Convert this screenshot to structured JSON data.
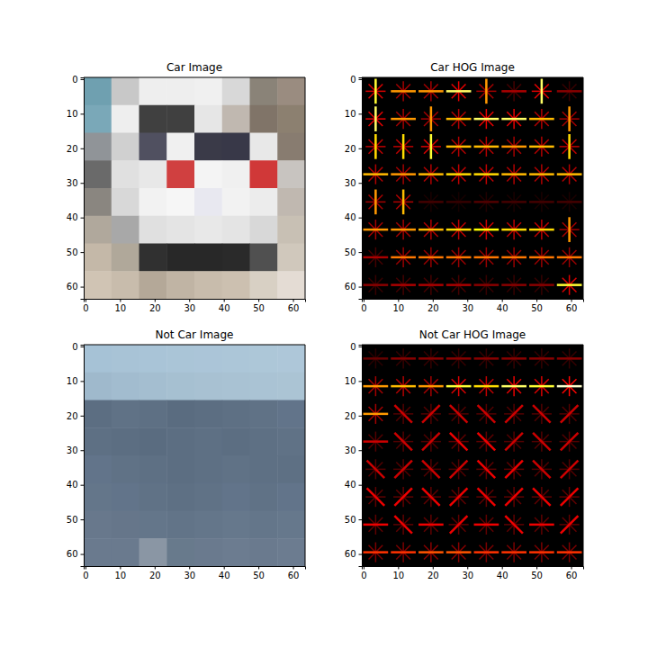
{
  "chart_data": [
    {
      "type": "image",
      "title": "Car Image",
      "xlim": [
        -0.5,
        63.5
      ],
      "ylim": [
        63.5,
        -0.5
      ],
      "xticks": [
        0,
        10,
        20,
        30,
        40,
        50,
        60
      ],
      "yticks": [
        0,
        10,
        20,
        30,
        40,
        50,
        60
      ],
      "pixels": [
        [
          "#6fa0b0",
          "#c8c8c8",
          "#eeeeee",
          "#eeeeee",
          "#f0f0f0",
          "#d8d8d8",
          "#8a8378",
          "#9a8c80"
        ],
        [
          "#7aa8b8",
          "#eeeeee",
          "#404040",
          "#404040",
          "#e6e6e6",
          "#c0b8b0",
          "#807468",
          "#8c8070"
        ],
        [
          "#909498",
          "#d0d0d0",
          "#505060",
          "#f0f0f0",
          "#3a3a48",
          "#383848",
          "#e8e8e8",
          "#887c70"
        ],
        [
          "#6a6a6a",
          "#e0e0e0",
          "#e8e8e8",
          "#d04040",
          "#f4f4f4",
          "#f0f0f0",
          "#d03838",
          "#c8c4c0"
        ],
        [
          "#8a8680",
          "#d8d8d8",
          "#f2f2f2",
          "#f6f6f6",
          "#e8e8f0",
          "#f2f2f2",
          "#ececec",
          "#c0b8b0"
        ],
        [
          "#b0a89c",
          "#a8a8a8",
          "#e0e0e0",
          "#e4e4e4",
          "#e8e8e8",
          "#e4e4e4",
          "#d8d8d8",
          "#c8c0b4"
        ],
        [
          "#c4b8a8",
          "#b0a89a",
          "#303030",
          "#282828",
          "#282828",
          "#2a2a2a",
          "#505050",
          "#d0c8bc"
        ],
        [
          "#d0c4b4",
          "#c8bcac",
          "#b4a898",
          "#c0b4a4",
          "#c8bcac",
          "#ccc0b0",
          "#d8d0c4",
          "#e4dcd4"
        ]
      ]
    },
    {
      "type": "hog",
      "title": "Car HOG Image",
      "xlim": [
        -0.5,
        63.5
      ],
      "ylim": [
        63.5,
        -0.5
      ],
      "xticks": [
        0,
        10,
        20,
        30,
        40,
        50,
        60
      ],
      "yticks": [
        0,
        10,
        20,
        30,
        40,
        50,
        60
      ],
      "magnitudes": [
        [
          0.8,
          0.6,
          0.6,
          0.85,
          0.6,
          0.25,
          0.85,
          0.2
        ],
        [
          0.85,
          0.6,
          0.6,
          0.65,
          0.85,
          0.85,
          0.65,
          0.6
        ],
        [
          0.7,
          0.7,
          0.8,
          0.65,
          0.65,
          0.6,
          0.65,
          0.7
        ],
        [
          0.65,
          0.6,
          0.65,
          0.7,
          0.7,
          0.65,
          0.65,
          0.65
        ],
        [
          0.6,
          0.65,
          0.1,
          0.08,
          0.12,
          0.1,
          0.1,
          0.1
        ],
        [
          0.6,
          0.6,
          0.65,
          0.7,
          0.75,
          0.7,
          0.7,
          0.6
        ],
        [
          0.25,
          0.55,
          0.55,
          0.55,
          0.55,
          0.55,
          0.55,
          0.55
        ],
        [
          0.2,
          0.25,
          0.25,
          0.25,
          0.2,
          0.2,
          0.2,
          0.8
        ]
      ],
      "angles": [
        [
          90,
          0,
          0,
          0,
          90,
          0,
          90,
          0
        ],
        [
          90,
          0,
          90,
          0,
          0,
          0,
          0,
          90
        ],
        [
          90,
          90,
          90,
          0,
          0,
          0,
          0,
          90
        ],
        [
          0,
          0,
          0,
          0,
          0,
          0,
          0,
          0
        ],
        [
          90,
          90,
          0,
          0,
          0,
          0,
          0,
          0
        ],
        [
          0,
          0,
          0,
          0,
          0,
          0,
          0,
          90
        ],
        [
          0,
          0,
          0,
          0,
          0,
          0,
          0,
          0
        ],
        [
          0,
          0,
          0,
          0,
          0,
          0,
          0,
          0
        ]
      ]
    },
    {
      "type": "image",
      "title": "Not Car Image",
      "xlim": [
        -0.5,
        63.5
      ],
      "ylim": [
        63.5,
        -0.5
      ],
      "xticks": [
        0,
        10,
        20,
        30,
        40,
        50,
        60
      ],
      "yticks": [
        0,
        10,
        20,
        30,
        40,
        50,
        60
      ],
      "pixels": [
        [
          "#a6c2d6",
          "#a8c3d6",
          "#a9c4d7",
          "#aac5d7",
          "#abc5d8",
          "#acc6d8",
          "#adc7d8",
          "#aec7d9"
        ],
        [
          "#9fb9cc",
          "#a2bccf",
          "#a4bed0",
          "#a6c0d1",
          "#a8c1d2",
          "#a9c2d3",
          "#aac3d4",
          "#abc4d4"
        ],
        [
          "#5c6e82",
          "#607286",
          "#5e7084",
          "#5a6c80",
          "#5c6e82",
          "#5e7084",
          "#607286",
          "#62748a"
        ],
        [
          "#5e7084",
          "#5c6e82",
          "#5a6c80",
          "#5c6e82",
          "#5e7084",
          "#5c6e82",
          "#5e7084",
          "#607286"
        ],
        [
          "#62748a",
          "#607286",
          "#5e7084",
          "#5c6e82",
          "#5e7084",
          "#607286",
          "#5e7084",
          "#5e7084"
        ],
        [
          "#64768a",
          "#62748a",
          "#607286",
          "#5e7084",
          "#607286",
          "#62748a",
          "#607286",
          "#62748a"
        ],
        [
          "#68788c",
          "#66768a",
          "#64768a",
          "#627488",
          "#64768a",
          "#66788c",
          "#64768a",
          "#66788c"
        ],
        [
          "#6a7a8e",
          "#6a7a8e",
          "#8a96a4",
          "#687a8c",
          "#6a7a8e",
          "#6c7c90",
          "#6a7a8e",
          "#6c7c90"
        ]
      ]
    },
    {
      "type": "hog",
      "title": "Not Car HOG Image",
      "xlim": [
        -0.5,
        63.5
      ],
      "ylim": [
        63.5,
        -0.5
      ],
      "xticks": [
        0,
        10,
        20,
        30,
        40,
        50,
        60
      ],
      "yticks": [
        0,
        10,
        20,
        30,
        40,
        50,
        60
      ],
      "magnitudes": [
        [
          0.15,
          0.2,
          0.2,
          0.2,
          0.2,
          0.2,
          0.2,
          0.2
        ],
        [
          0.6,
          0.65,
          0.6,
          0.8,
          0.7,
          0.85,
          0.8,
          0.95
        ],
        [
          0.6,
          0.3,
          0.3,
          0.3,
          0.3,
          0.3,
          0.3,
          0.3
        ],
        [
          0.3,
          0.3,
          0.3,
          0.35,
          0.35,
          0.3,
          0.3,
          0.3
        ],
        [
          0.3,
          0.3,
          0.3,
          0.3,
          0.35,
          0.35,
          0.3,
          0.3
        ],
        [
          0.35,
          0.35,
          0.35,
          0.35,
          0.35,
          0.35,
          0.35,
          0.35
        ],
        [
          0.35,
          0.35,
          0.35,
          0.35,
          0.35,
          0.35,
          0.35,
          0.35
        ],
        [
          0.45,
          0.45,
          0.5,
          0.5,
          0.45,
          0.45,
          0.45,
          0.45
        ]
      ],
      "angles": [
        [
          0,
          0,
          0,
          0,
          0,
          0,
          0,
          0
        ],
        [
          0,
          0,
          0,
          0,
          0,
          0,
          0,
          0
        ],
        [
          0,
          45,
          135,
          45,
          45,
          135,
          45,
          135
        ],
        [
          0,
          45,
          135,
          45,
          45,
          135,
          45,
          135
        ],
        [
          45,
          135,
          45,
          135,
          45,
          135,
          45,
          135
        ],
        [
          45,
          135,
          45,
          135,
          45,
          135,
          45,
          135
        ],
        [
          0,
          45,
          0,
          135,
          0,
          45,
          0,
          135
        ],
        [
          0,
          0,
          0,
          0,
          0,
          0,
          0,
          0
        ]
      ]
    }
  ]
}
